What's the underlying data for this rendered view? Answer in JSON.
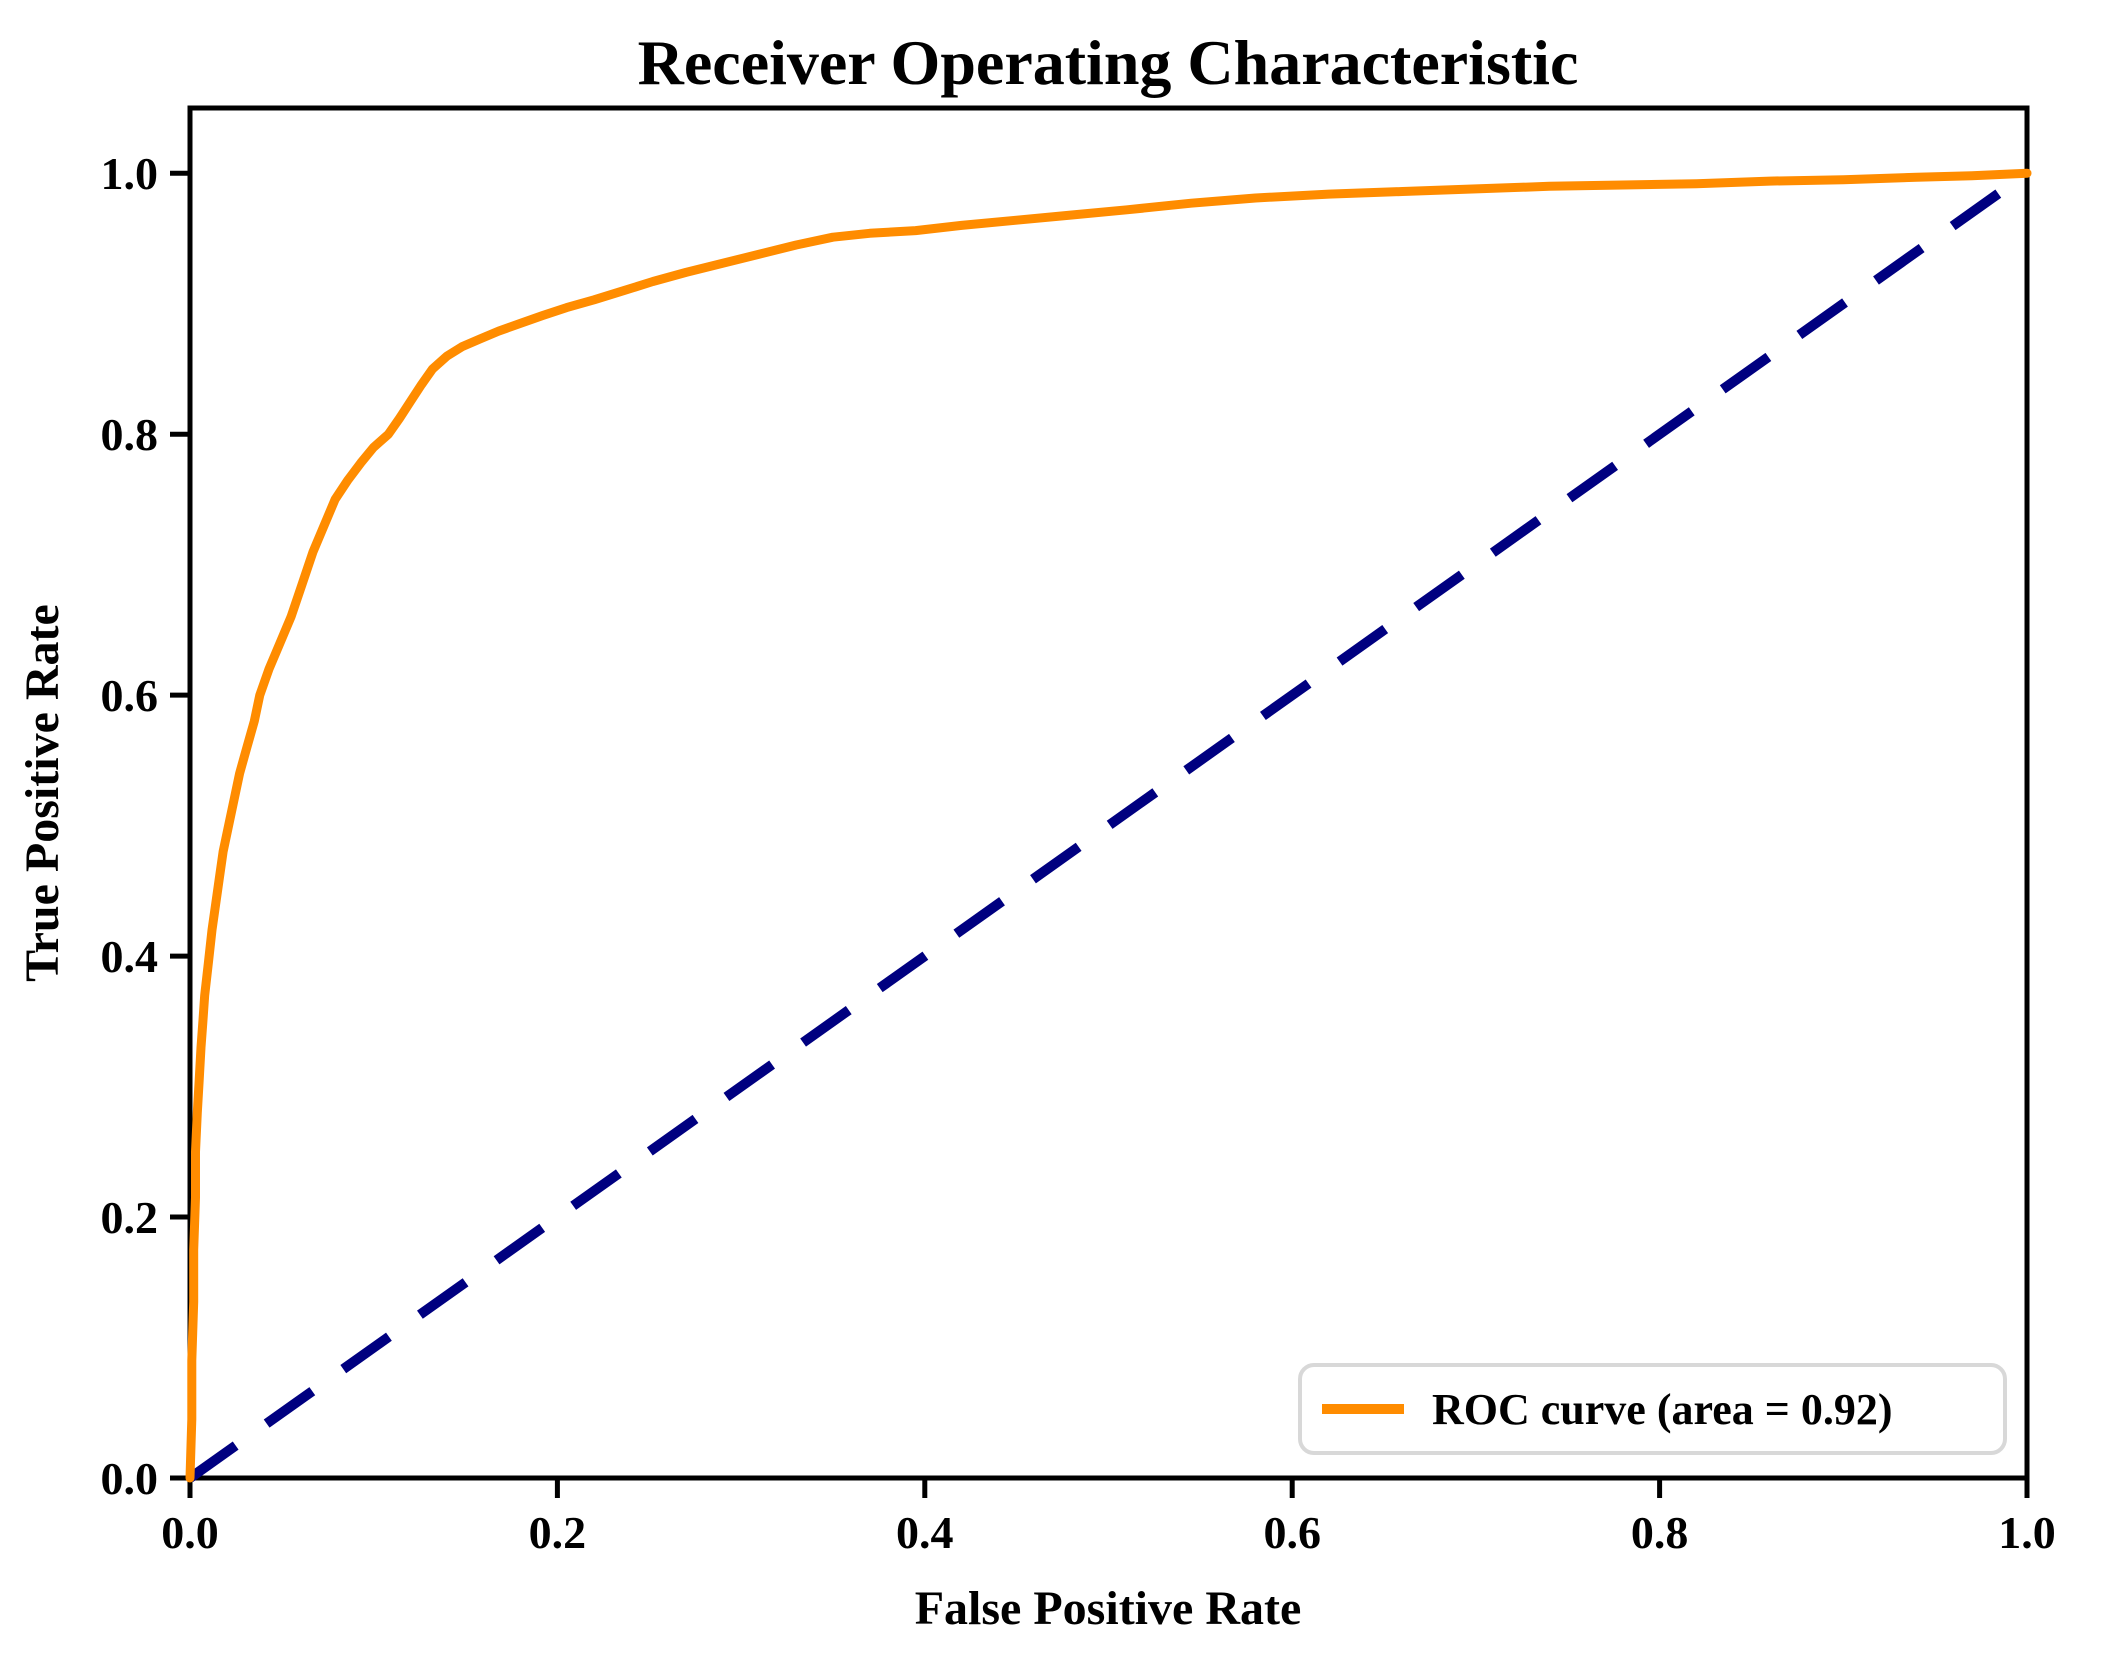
{
  "figure": {
    "background": "#FFFFFF",
    "axis_color": "#000000",
    "legend_border_color": "#D8D8D8"
  },
  "chart_data": {
    "type": "line",
    "title": "Receiver Operating Characteristic",
    "xlabel": "False Positive Rate",
    "ylabel": "True Positive Rate",
    "xlim": [
      0.0,
      1.0
    ],
    "ylim": [
      0.0,
      1.05
    ],
    "grid": false,
    "xtick_values": [
      0.0,
      0.2,
      0.4,
      0.6,
      0.8,
      1.0
    ],
    "xtick_labels": [
      "0.0",
      "0.2",
      "0.4",
      "0.6",
      "0.8",
      "1.0"
    ],
    "ytick_values": [
      0.0,
      0.2,
      0.4,
      0.6,
      0.8,
      1.0
    ],
    "ytick_labels": [
      "0.0",
      "0.2",
      "0.4",
      "0.6",
      "0.8",
      "1.0"
    ],
    "auc": 0.92,
    "legend": {
      "position": "lower right",
      "entries": [
        {
          "label": "ROC curve (area = 0.92)",
          "color": "#FF8C00",
          "style": "solid"
        }
      ]
    },
    "series": [
      {
        "name": "ROC curve (area = 0.92)",
        "color": "#FF8C00",
        "style": "solid",
        "points": [
          [
            0.0,
            0.0
          ],
          [
            0.001,
            0.045
          ],
          [
            0.001,
            0.09
          ],
          [
            0.002,
            0.135
          ],
          [
            0.002,
            0.175
          ],
          [
            0.003,
            0.215
          ],
          [
            0.003,
            0.25
          ],
          [
            0.004,
            0.28
          ],
          [
            0.005,
            0.305
          ],
          [
            0.006,
            0.33
          ],
          [
            0.007,
            0.35
          ],
          [
            0.008,
            0.37
          ],
          [
            0.01,
            0.395
          ],
          [
            0.012,
            0.42
          ],
          [
            0.014,
            0.44
          ],
          [
            0.016,
            0.46
          ],
          [
            0.018,
            0.48
          ],
          [
            0.021,
            0.5
          ],
          [
            0.024,
            0.52
          ],
          [
            0.027,
            0.54
          ],
          [
            0.031,
            0.56
          ],
          [
            0.035,
            0.58
          ],
          [
            0.038,
            0.6
          ],
          [
            0.043,
            0.62
          ],
          [
            0.049,
            0.64
          ],
          [
            0.055,
            0.66
          ],
          [
            0.061,
            0.685
          ],
          [
            0.067,
            0.71
          ],
          [
            0.073,
            0.73
          ],
          [
            0.079,
            0.75
          ],
          [
            0.086,
            0.765
          ],
          [
            0.093,
            0.778
          ],
          [
            0.1,
            0.79
          ],
          [
            0.108,
            0.8
          ],
          [
            0.114,
            0.812
          ],
          [
            0.12,
            0.825
          ],
          [
            0.126,
            0.838
          ],
          [
            0.132,
            0.85
          ],
          [
            0.14,
            0.86
          ],
          [
            0.148,
            0.867
          ],
          [
            0.158,
            0.873
          ],
          [
            0.168,
            0.879
          ],
          [
            0.18,
            0.885
          ],
          [
            0.192,
            0.891
          ],
          [
            0.205,
            0.897
          ],
          [
            0.22,
            0.903
          ],
          [
            0.236,
            0.91
          ],
          [
            0.252,
            0.917
          ],
          [
            0.27,
            0.924
          ],
          [
            0.29,
            0.931
          ],
          [
            0.31,
            0.938
          ],
          [
            0.33,
            0.945
          ],
          [
            0.35,
            0.951
          ],
          [
            0.37,
            0.954
          ],
          [
            0.395,
            0.956
          ],
          [
            0.42,
            0.96
          ],
          [
            0.45,
            0.964
          ],
          [
            0.48,
            0.968
          ],
          [
            0.51,
            0.972
          ],
          [
            0.545,
            0.977
          ],
          [
            0.58,
            0.981
          ],
          [
            0.62,
            0.984
          ],
          [
            0.66,
            0.986
          ],
          [
            0.7,
            0.988
          ],
          [
            0.74,
            0.99
          ],
          [
            0.78,
            0.991
          ],
          [
            0.82,
            0.992
          ],
          [
            0.86,
            0.994
          ],
          [
            0.9,
            0.995
          ],
          [
            0.94,
            0.997
          ],
          [
            0.97,
            0.998
          ],
          [
            1.0,
            1.0
          ]
        ]
      },
      {
        "name": "chance diagonal",
        "color": "#000080",
        "style": "dashed",
        "points": [
          [
            0.0,
            0.0
          ],
          [
            1.0,
            1.0
          ]
        ]
      }
    ]
  }
}
